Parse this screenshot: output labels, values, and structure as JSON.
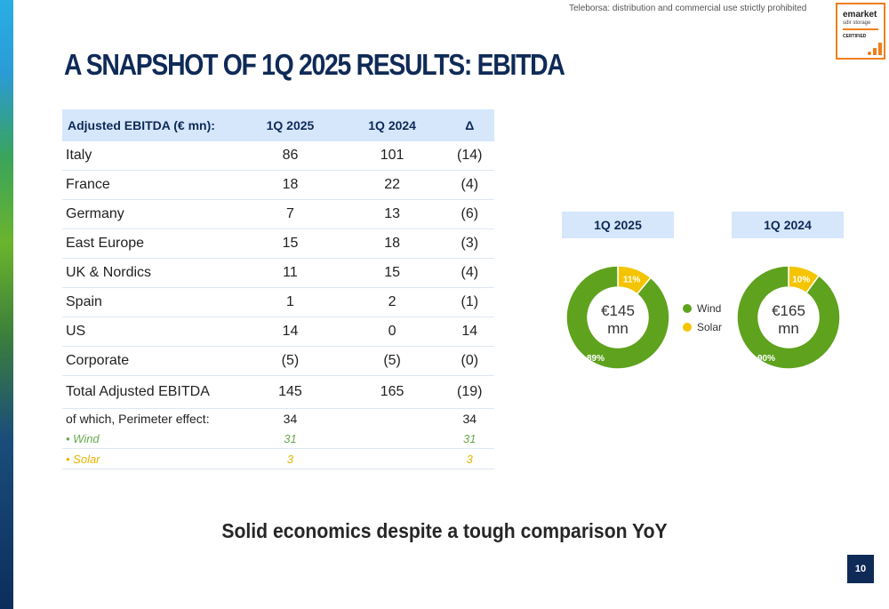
{
  "header": {
    "disclaimer": "Teleborsa: distribution and commercial use strictly prohibited",
    "badge": {
      "line1": "emarket",
      "line2": "sdir storage",
      "line3": "CERTIFIED"
    },
    "title": "A SNAPSHOT OF 1Q 2025 RESULTS: EBITDA"
  },
  "table": {
    "headers": [
      "Adjusted EBITDA (€ mn):",
      "1Q 2025",
      "1Q 2024",
      "Δ"
    ],
    "rows": [
      [
        "Italy",
        "86",
        "101",
        "(14)"
      ],
      [
        "France",
        "18",
        "22",
        "(4)"
      ],
      [
        "Germany",
        "7",
        "13",
        "(6)"
      ],
      [
        "East Europe",
        "15",
        "18",
        "(3)"
      ],
      [
        "UK & Nordics",
        "11",
        "15",
        "(4)"
      ],
      [
        "Spain",
        "1",
        "2",
        "(1)"
      ],
      [
        "US",
        "14",
        "0",
        "14"
      ],
      [
        "Corporate",
        "(5)",
        "(5)",
        "(0)"
      ]
    ],
    "total": [
      "Total Adjusted EBITDA",
      "145",
      "165",
      "(19)"
    ],
    "perimeter": [
      "of which, Perimeter effect:",
      "34",
      "",
      "34"
    ],
    "wind": [
      "• Wind",
      "31",
      "",
      "31"
    ],
    "solar": [
      "• Solar",
      "3",
      "",
      "3"
    ]
  },
  "chart_data": [
    {
      "type": "pie",
      "title": "1Q 2025",
      "center_label_line1": "€145",
      "center_label_line2": "mn",
      "slices": [
        {
          "name": "Wind",
          "value": 89,
          "label": "89%",
          "color": "#5fa21e"
        },
        {
          "name": "Solar",
          "value": 11,
          "label": "11%",
          "color": "#f5c400"
        }
      ]
    },
    {
      "type": "pie",
      "title": "1Q 2024",
      "center_label_line1": "€165",
      "center_label_line2": "mn",
      "slices": [
        {
          "name": "Wind",
          "value": 90,
          "label": "90%",
          "color": "#5fa21e"
        },
        {
          "name": "Solar",
          "value": 10,
          "label": "10%",
          "color": "#f5c400"
        }
      ]
    }
  ],
  "legend": [
    {
      "name": "Wind",
      "color": "#5fa21e"
    },
    {
      "name": "Solar",
      "color": "#f5c400"
    }
  ],
  "conclusion": "Solid economics despite a tough comparison YoY",
  "page_number": "10"
}
